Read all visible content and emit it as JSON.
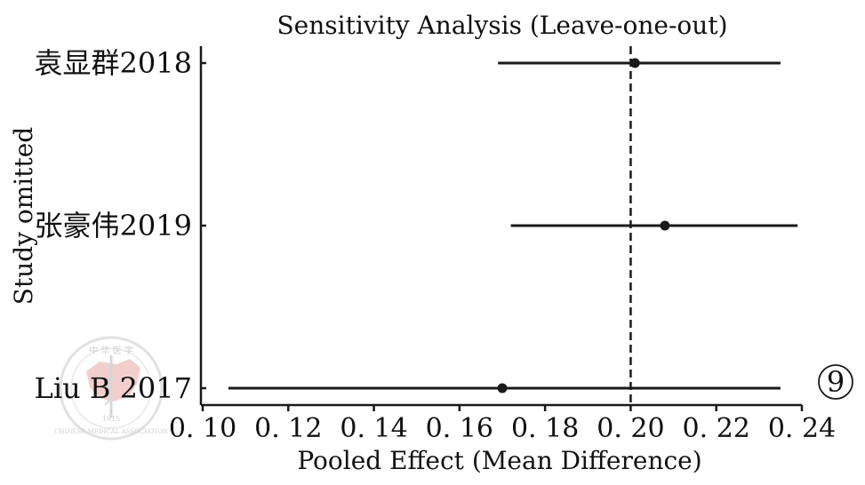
{
  "chart_data": {
    "type": "forest",
    "title": "Sensitivity Analysis (Leave-one-out)",
    "xlabel": "Pooled Effect (Mean Difference)",
    "ylabel": "Study omitted",
    "xlim": [
      0.1,
      0.24
    ],
    "xticks": [
      0.1,
      0.12,
      0.14,
      0.16,
      0.18,
      0.2,
      0.22,
      0.24
    ],
    "xtick_labels": [
      "0. 10",
      "0. 12",
      "0. 14",
      "0. 16",
      "0. 18",
      "0. 20",
      "0. 22",
      "0. 24"
    ],
    "reference_line": 0.2,
    "studies": [
      {
        "name": "袁显群2018",
        "estimate": 0.201,
        "lower": 0.169,
        "upper": 0.235
      },
      {
        "name": "张豪伟2019",
        "estimate": 0.208,
        "lower": 0.172,
        "upper": 0.239
      },
      {
        "name": "Liu B 2017",
        "estimate": 0.17,
        "lower": 0.106,
        "upper": 0.235
      }
    ],
    "colors": {
      "line": "#1a1a1a",
      "point": "#1a1a1a",
      "axis": "#1a1a1a"
    }
  },
  "panel_label": "9",
  "watermark": {
    "top_text": "中 华 医 学",
    "year": "1915",
    "ring_text": "CHINESE MEDICAL ASSOCIATION"
  }
}
